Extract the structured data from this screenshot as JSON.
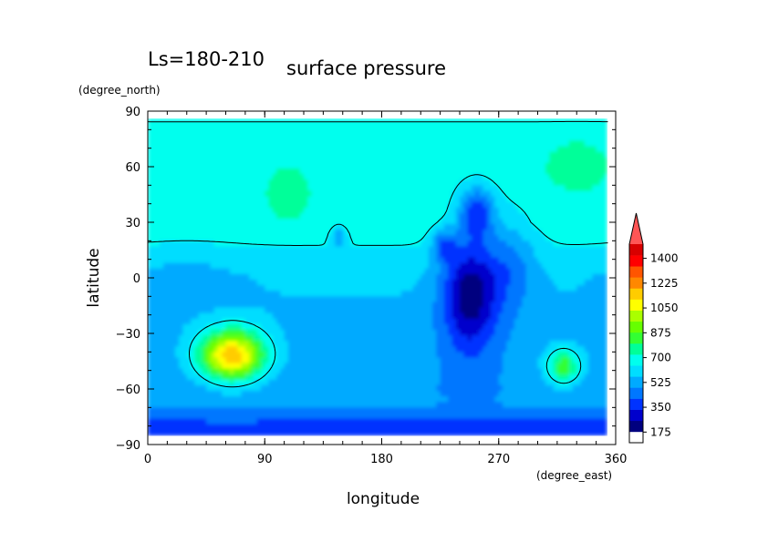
{
  "chart_data": {
    "type": "heatmap",
    "title": "surface pressure",
    "subtitle": "Ls=180-210",
    "xlabel": "longitude",
    "ylabel": "latitude",
    "xunits": "(degree_east)",
    "yunits": "(degree_north)",
    "xlim": [
      0,
      360
    ],
    "ylim": [
      -90,
      90
    ],
    "xticks": [
      "0",
      "90",
      "180",
      "270",
      "360"
    ],
    "yticks": [
      "90",
      "60",
      "30",
      "0",
      "−30",
      "−60",
      "−90"
    ],
    "colorbar": {
      "labels": [
        "175",
        "350",
        "525",
        "700",
        "875",
        "1050",
        "1225",
        "1400"
      ],
      "range": [
        100,
        1500
      ],
      "extend": "max",
      "colors": [
        "#ffffff",
        "#00007f",
        "#0000cc",
        "#0033ff",
        "#0077ff",
        "#00aaff",
        "#00ddff",
        "#00ffee",
        "#00ff99",
        "#33ff33",
        "#66ff00",
        "#aaff00",
        "#ffff00",
        "#ffcc00",
        "#ff8800",
        "#ff5500",
        "#ff0000",
        "#d80000",
        "#ff5555"
      ]
    },
    "contour_level": 650,
    "grid": false,
    "features": [
      {
        "lon": 65,
        "lat": -42,
        "value": 1150
      },
      {
        "lon": 108,
        "lat": 46,
        "value": 760
      },
      {
        "lon": 330,
        "lat": 60,
        "value": 740
      },
      {
        "lon": 147,
        "lat": 22,
        "value": 600
      },
      {
        "lon": 248,
        "lat": -8,
        "value": 245
      },
      {
        "lon": 253,
        "lat": 36,
        "value": 330
      },
      {
        "lon": 228,
        "lat": 18,
        "value": 380
      },
      {
        "lon": 320,
        "lat": -48,
        "value": 820
      }
    ]
  }
}
